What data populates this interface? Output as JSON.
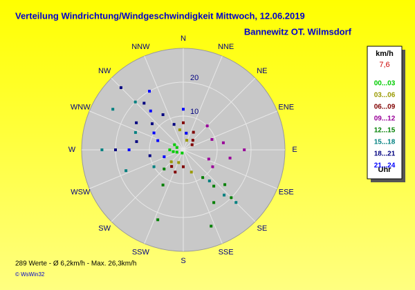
{
  "chart_data": {
    "type": "polar-scatter",
    "title": "Verteilung Windrichtung/Windgeschwindigkeit  Mittwoch, 12.06.2019",
    "subtitle": "Bannewitz OT. Wilmsdorf",
    "directions": [
      "N",
      "NNE",
      "NE",
      "ENE",
      "E",
      "ESE",
      "SE",
      "SSE",
      "S",
      "SSW",
      "SW",
      "WSW",
      "W",
      "WNW",
      "NW",
      "NNW"
    ],
    "rlim": [
      0,
      30
    ],
    "rticks": [
      10,
      20
    ],
    "legend_title": "km/h",
    "legend_value": "7,6",
    "legend_footer": "Uhr",
    "series": [
      {
        "name": "00...03",
        "color": "#00cc00",
        "x": [
          250,
          260,
          270,
          290,
          300,
          200
        ],
        "values": [
          2,
          3,
          4,
          2,
          3,
          1
        ]
      },
      {
        "name": "03...06",
        "color": "#999900",
        "x": [
          10,
          350,
          20,
          200,
          225,
          160
        ],
        "values": [
          5,
          6,
          3,
          4,
          5,
          7
        ]
      },
      {
        "name": "06...09",
        "color": "#800000",
        "x": [
          30,
          45,
          60,
          0,
          180,
          200,
          215
        ],
        "values": [
          6,
          4,
          3,
          8,
          5,
          7,
          6
        ]
      },
      {
        "name": "09...12",
        "color": "#990099",
        "x": [
          80,
          90,
          100,
          70,
          110,
          120,
          45
        ],
        "values": [
          12,
          18,
          14,
          9,
          8,
          10,
          10
        ]
      },
      {
        "name": "12...15",
        "color": "#008000",
        "x": [
          130,
          135,
          140,
          145,
          150,
          200,
          210,
          225,
          160
        ],
        "values": [
          16,
          20,
          14,
          10,
          18,
          22,
          12,
          8,
          24
        ]
      },
      {
        "name": "15...18",
        "color": "#008080",
        "x": [
          135,
          138,
          140,
          315,
          300,
          270,
          250,
          290,
          240
        ],
        "values": [
          22,
          18,
          12,
          20,
          24,
          24,
          18,
          15,
          10
        ]
      },
      {
        "name": "18...21",
        "color": "#000080",
        "x": [
          315,
          320,
          310,
          270,
          280,
          260,
          330,
          340,
          300
        ],
        "values": [
          26,
          18,
          12,
          20,
          14,
          10,
          12,
          8,
          16
        ]
      },
      {
        "name": "21...24",
        "color": "#0000ff",
        "x": [
          330,
          320,
          270,
          290,
          250,
          300,
          0,
          10
        ],
        "values": [
          20,
          15,
          16,
          8,
          6,
          10,
          12,
          5
        ]
      }
    ],
    "footer": "289 Werte   -   Ø 6,2km/h   -   Max. 26,3km/h",
    "copyright": "© WsWin32"
  }
}
